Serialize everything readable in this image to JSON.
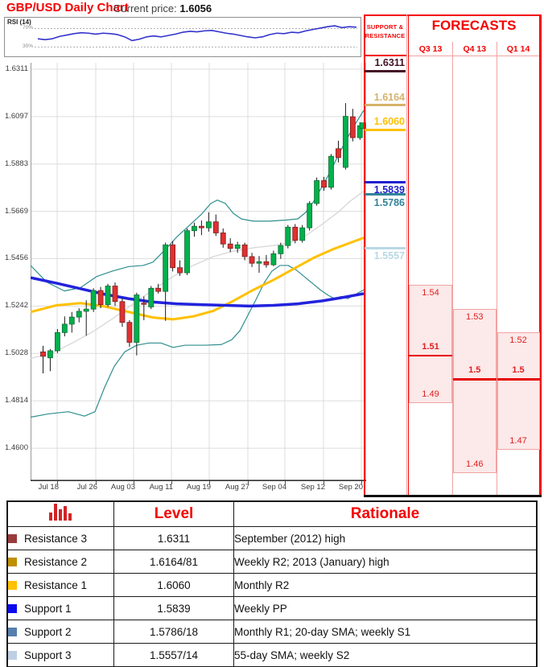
{
  "header": {
    "title": "GBP/USD Daily Chart",
    "price_label": "Current price:",
    "price_value": "1.6056"
  },
  "rsi": {
    "label": "RSI (14)",
    "upper_label": "70%",
    "lower_label": "30%",
    "color": "#3333cc",
    "values": [
      48,
      46,
      48,
      53,
      56,
      59,
      61,
      60,
      58,
      60,
      59,
      57,
      52,
      44,
      47,
      52,
      54,
      52,
      55,
      58,
      62,
      64,
      63,
      65,
      66,
      63,
      60,
      58,
      55,
      52,
      50,
      52,
      57,
      60,
      59,
      62,
      61,
      65,
      68,
      71,
      74,
      76,
      72,
      74,
      73
    ]
  },
  "chart_data": {
    "type": "candlestick",
    "title": "GBP/USD Daily Chart",
    "ylim": [
      1.455,
      1.636
    ],
    "grid": true,
    "y_tick_labels": [
      "1.6311",
      "1.6097",
      "1.5883",
      "1.5669",
      "1.5456",
      "1.5242",
      "1.5028",
      "1.4814",
      "1.4600"
    ],
    "x_tick_labels": [
      "Jul 18",
      "Jul 26",
      "Aug 03",
      "Aug 11",
      "Aug 19",
      "Aug 27",
      "Sep 04",
      "Sep 12",
      "Sep 20"
    ],
    "candle_up_color": "#00b14c",
    "candle_down_color": "#e03030",
    "last_price": 1.6056,
    "candles": [
      [
        1.5035,
        1.5062,
        1.4938,
        1.5015
      ],
      [
        1.5008,
        1.5048,
        1.4948,
        1.504
      ],
      [
        1.504,
        1.5138,
        1.503,
        1.5122
      ],
      [
        1.5122,
        1.5195,
        1.5105,
        1.516
      ],
      [
        1.516,
        1.5215,
        1.5122,
        1.5192
      ],
      [
        1.5192,
        1.5232,
        1.5168,
        1.5218
      ],
      [
        1.5218,
        1.5268,
        1.5108,
        1.5228
      ],
      [
        1.5228,
        1.5322,
        1.5215,
        1.5312
      ],
      [
        1.5312,
        1.5328,
        1.5232,
        1.5248
      ],
      [
        1.5248,
        1.5342,
        1.5238,
        1.5332
      ],
      [
        1.5332,
        1.5348,
        1.5242,
        1.5262
      ],
      [
        1.5262,
        1.5278,
        1.5148,
        1.5168
      ],
      [
        1.5168,
        1.5178,
        1.5058,
        1.5078
      ],
      [
        1.5078,
        1.5302,
        1.5019,
        1.5292
      ],
      [
        1.5255,
        1.5285,
        1.5178,
        1.5252
      ],
      [
        1.5238,
        1.5332,
        1.5228,
        1.5322
      ],
      [
        1.5322,
        1.5342,
        1.5298,
        1.5308
      ],
      [
        1.5308,
        1.5528,
        1.5175,
        1.5518
      ],
      [
        1.5518,
        1.5535,
        1.5398,
        1.5415
      ],
      [
        1.5415,
        1.5448,
        1.5378,
        1.5392
      ],
      [
        1.5392,
        1.5592,
        1.5382,
        1.5582
      ],
      [
        1.5582,
        1.5618,
        1.5555,
        1.5602
      ],
      [
        1.5602,
        1.5628,
        1.5562,
        1.5595
      ],
      [
        1.5595,
        1.5665,
        1.5578,
        1.5622
      ],
      [
        1.5622,
        1.5655,
        1.5558,
        1.5572
      ],
      [
        1.5572,
        1.5592,
        1.5505,
        1.5522
      ],
      [
        1.5522,
        1.5548,
        1.5485,
        1.5502
      ],
      [
        1.5502,
        1.5532,
        1.5482,
        1.5518
      ],
      [
        1.5518,
        1.5528,
        1.5448,
        1.5465
      ],
      [
        1.5465,
        1.5482,
        1.5418,
        1.5435
      ],
      [
        1.5435,
        1.5468,
        1.5392,
        1.5442
      ],
      [
        1.5442,
        1.5472,
        1.5415,
        1.5428
      ],
      [
        1.5428,
        1.5492,
        1.5422,
        1.5478
      ],
      [
        1.5478,
        1.5528,
        1.5455,
        1.5515
      ],
      [
        1.5515,
        1.5608,
        1.5502,
        1.5598
      ],
      [
        1.5598,
        1.5612,
        1.5525,
        1.5538
      ],
      [
        1.5538,
        1.5608,
        1.5528,
        1.5595
      ],
      [
        1.5595,
        1.5715,
        1.5582,
        1.5705
      ],
      [
        1.5705,
        1.5822,
        1.5695,
        1.5808
      ],
      [
        1.5808,
        1.5825,
        1.5762,
        1.5778
      ],
      [
        1.5778,
        1.5928,
        1.5768,
        1.5918
      ],
      [
        1.5952,
        1.5988,
        1.589,
        1.5912
      ],
      [
        1.5868,
        1.6158,
        1.5858,
        1.6098
      ],
      [
        1.6096,
        1.6132,
        1.5985,
        1.6002
      ],
      [
        1.6002,
        1.6072,
        1.5992,
        1.6056
      ]
    ],
    "overlays": [
      {
        "name": "bollinger-upper",
        "color": "#2f8e8e",
        "width": 1.2,
        "points": [
          [
            38,
            1.5425
          ],
          [
            58,
            1.535
          ],
          [
            80,
            1.531
          ],
          [
            100,
            1.5325
          ],
          [
            120,
            1.5375
          ],
          [
            140,
            1.54
          ],
          [
            160,
            1.542
          ],
          [
            178,
            1.5425
          ],
          [
            190,
            1.544
          ],
          [
            205,
            1.5495
          ],
          [
            220,
            1.5555
          ],
          [
            235,
            1.5605
          ],
          [
            250,
            1.5655
          ],
          [
            262,
            1.5705
          ],
          [
            270,
            1.572
          ],
          [
            280,
            1.5705
          ],
          [
            290,
            1.566
          ],
          [
            300,
            1.5635
          ],
          [
            315,
            1.5625
          ],
          [
            335,
            1.5625
          ],
          [
            355,
            1.563
          ],
          [
            370,
            1.5635
          ],
          [
            380,
            1.5665
          ],
          [
            390,
            1.5715
          ],
          [
            400,
            1.578
          ],
          [
            410,
            1.5845
          ],
          [
            420,
            1.592
          ],
          [
            430,
            1.599
          ],
          [
            440,
            1.6055
          ],
          [
            452,
            1.6125
          ]
        ]
      },
      {
        "name": "bollinger-lower",
        "color": "#2f8e8e",
        "width": 1.2,
        "points": [
          [
            38,
            1.474
          ],
          [
            60,
            1.4755
          ],
          [
            85,
            1.4765
          ],
          [
            105,
            1.4745
          ],
          [
            118,
            1.4765
          ],
          [
            130,
            1.4875
          ],
          [
            142,
            1.497
          ],
          [
            155,
            1.5035
          ],
          [
            170,
            1.5065
          ],
          [
            185,
            1.5075
          ],
          [
            200,
            1.5075
          ],
          [
            215,
            1.5055
          ],
          [
            230,
            1.5065
          ],
          [
            255,
            1.5065
          ],
          [
            275,
            1.5068
          ],
          [
            288,
            1.509
          ],
          [
            298,
            1.513
          ],
          [
            308,
            1.52
          ],
          [
            318,
            1.527
          ],
          [
            328,
            1.5345
          ],
          [
            338,
            1.54
          ],
          [
            348,
            1.5425
          ],
          [
            358,
            1.5425
          ],
          [
            368,
            1.5405
          ],
          [
            378,
            1.5375
          ],
          [
            388,
            1.5345
          ],
          [
            398,
            1.5315
          ],
          [
            408,
            1.529
          ],
          [
            416,
            1.5275
          ],
          [
            424,
            1.5285
          ],
          [
            432,
            1.5275
          ],
          [
            442,
            1.5295
          ],
          [
            452,
            1.5315
          ]
        ]
      },
      {
        "name": "sma-20",
        "color": "#d9d9d9",
        "width": 1.4,
        "points": [
          [
            38,
            1.5005
          ],
          [
            65,
            1.503
          ],
          [
            90,
            1.5075
          ],
          [
            115,
            1.5125
          ],
          [
            140,
            1.5185
          ],
          [
            165,
            1.525
          ],
          [
            190,
            1.5315
          ],
          [
            215,
            1.5375
          ],
          [
            240,
            1.5425
          ],
          [
            265,
            1.5465
          ],
          [
            290,
            1.549
          ],
          [
            315,
            1.5505
          ],
          [
            340,
            1.5515
          ],
          [
            360,
            1.5527
          ],
          [
            380,
            1.556
          ],
          [
            400,
            1.561
          ],
          [
            420,
            1.5665
          ],
          [
            435,
            1.5715
          ],
          [
            452,
            1.576
          ]
        ]
      },
      {
        "name": "sma-55",
        "color": "#ffc000",
        "width": 3,
        "points": [
          [
            38,
            1.5215
          ],
          [
            70,
            1.5245
          ],
          [
            100,
            1.5255
          ],
          [
            130,
            1.524
          ],
          [
            160,
            1.5215
          ],
          [
            190,
            1.519
          ],
          [
            215,
            1.5182
          ],
          [
            240,
            1.5195
          ],
          [
            265,
            1.522
          ],
          [
            290,
            1.5265
          ],
          [
            315,
            1.5315
          ],
          [
            340,
            1.536
          ],
          [
            365,
            1.541
          ],
          [
            390,
            1.546
          ],
          [
            415,
            1.55
          ],
          [
            452,
            1.555
          ]
        ]
      },
      {
        "name": "sma-200",
        "color": "#2222dd",
        "width": 3.5,
        "points": [
          [
            38,
            1.537
          ],
          [
            70,
            1.5345
          ],
          [
            100,
            1.532
          ],
          [
            130,
            1.5295
          ],
          [
            160,
            1.5275
          ],
          [
            190,
            1.526
          ],
          [
            220,
            1.5252
          ],
          [
            250,
            1.5248
          ],
          [
            280,
            1.5245
          ],
          [
            310,
            1.5242
          ],
          [
            340,
            1.5245
          ],
          [
            370,
            1.5252
          ],
          [
            400,
            1.5265
          ],
          [
            425,
            1.528
          ],
          [
            452,
            1.5298
          ]
        ]
      }
    ]
  },
  "support_resistance": {
    "header_line1": "SUPPORT &",
    "header_line2": "RESISTANCE",
    "levels": [
      {
        "key": "resistance-3",
        "label": "1.6311",
        "value": 1.6311,
        "color": "#441126",
        "side": "above"
      },
      {
        "key": "resistance-2",
        "label": "1.6164",
        "value": 1.6164,
        "color": "#d5b26a",
        "side": "above"
      },
      {
        "key": "resistance-1",
        "label": "1.6060",
        "value": 1.606,
        "color": "#ffc000",
        "side": "above"
      },
      {
        "key": "support-1",
        "label": "1.5839",
        "value": 1.5839,
        "color": "#2021ce",
        "side": "below"
      },
      {
        "key": "support-2",
        "label": "1.5786",
        "value": 1.5786,
        "color": "#31849b",
        "side": "below"
      },
      {
        "key": "support-3",
        "label": "1.5557",
        "value": 1.5557,
        "color": "#b8d8e4",
        "side": "below"
      }
    ]
  },
  "forecasts": {
    "title": "FORECASTS",
    "columns": [
      {
        "key": "q3-13",
        "label": "Q3 13",
        "high": 1.54,
        "high_label": "1.54",
        "mid": 1.51,
        "mid_label": "1.51",
        "low": 1.49,
        "low_label": "1.49"
      },
      {
        "key": "q4-13",
        "label": "Q4 13",
        "high": 1.53,
        "high_label": "1.53",
        "mid": 1.5,
        "mid_label": "1.5",
        "low": 1.46,
        "low_label": "1.46"
      },
      {
        "key": "q1-14",
        "label": "Q1 14",
        "high": 1.52,
        "high_label": "1.52",
        "mid": 1.5,
        "mid_label": "1.5",
        "low": 1.47,
        "low_label": "1.47"
      }
    ]
  },
  "table": {
    "level_header": "Level",
    "rationale_header": "Rationale",
    "rows": [
      {
        "key": "resistance-3",
        "swatch": "#9a3b3b",
        "name": "Resistance 3",
        "level": "1.6311",
        "rationale": "September (2012) high"
      },
      {
        "key": "resistance-2",
        "swatch": "#bf8f00",
        "name": "Resistance 2",
        "level": "1.6164/81",
        "rationale": "Weekly R2; 2013 (January) high"
      },
      {
        "key": "resistance-1",
        "swatch": "#ffc000",
        "name": "Resistance 1",
        "level": "1.6060",
        "rationale": "Monthly R2"
      },
      {
        "key": "support-1",
        "swatch": "#0a0af0",
        "name": "Support 1",
        "level": "1.5839",
        "rationale": "Weekly PP"
      },
      {
        "key": "support-2",
        "swatch": "#567fae",
        "name": "Support 2",
        "level": "1.5786/18",
        "rationale": "Monthly R1; 20-day SMA; weekly S1"
      },
      {
        "key": "support-3",
        "swatch": "#becfe3",
        "name": "Support 3",
        "level": "1.5557/14",
        "rationale": "55-day SMA; weekly S2"
      }
    ]
  }
}
